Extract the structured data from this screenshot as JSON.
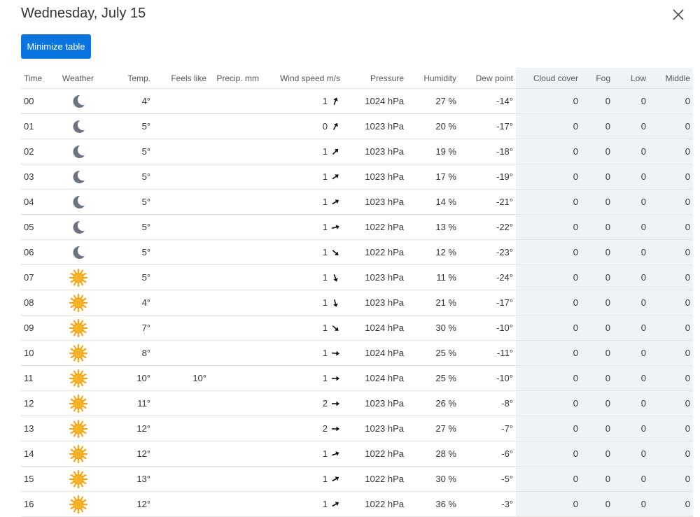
{
  "header": {
    "title": "Wednesday, July 15"
  },
  "toolbar": {
    "minimize_label": "Minimize table"
  },
  "columns": [
    "Time",
    "Weather",
    "Temp.",
    "Feels like",
    "Precip. mm",
    "Wind speed m/s",
    "Pressure",
    "Humidity",
    "Dew point",
    "Cloud cover",
    "Fog",
    "Low",
    "Middle"
  ],
  "rows": [
    {
      "time": "00",
      "weather": "moon-icon",
      "temp": "4°",
      "feels": "",
      "precip": "",
      "wind": "1",
      "wind_deg": 200,
      "pressure": "1024 hPa",
      "humidity": "27 %",
      "dew": "-14°",
      "cloud": "0",
      "fog": "0",
      "low": "0",
      "middle": "0"
    },
    {
      "time": "01",
      "weather": "moon-icon",
      "temp": "5°",
      "feels": "",
      "precip": "",
      "wind": "0",
      "wind_deg": 210,
      "pressure": "1023 hPa",
      "humidity": "20 %",
      "dew": "-17°",
      "cloud": "0",
      "fog": "0",
      "low": "0",
      "middle": "0"
    },
    {
      "time": "02",
      "weather": "moon-icon",
      "temp": "5°",
      "feels": "",
      "precip": "",
      "wind": "1",
      "wind_deg": 225,
      "pressure": "1023 hPa",
      "humidity": "19 %",
      "dew": "-18°",
      "cloud": "0",
      "fog": "0",
      "low": "0",
      "middle": "0"
    },
    {
      "time": "03",
      "weather": "moon-icon",
      "temp": "5°",
      "feels": "",
      "precip": "",
      "wind": "1",
      "wind_deg": 235,
      "pressure": "1023 hPa",
      "humidity": "17 %",
      "dew": "-19°",
      "cloud": "0",
      "fog": "0",
      "low": "0",
      "middle": "0"
    },
    {
      "time": "04",
      "weather": "moon-icon",
      "temp": "5°",
      "feels": "",
      "precip": "",
      "wind": "1",
      "wind_deg": 240,
      "pressure": "1023 hPa",
      "humidity": "14 %",
      "dew": "-21°",
      "cloud": "0",
      "fog": "0",
      "low": "0",
      "middle": "0"
    },
    {
      "time": "05",
      "weather": "moon-icon",
      "temp": "5°",
      "feels": "",
      "precip": "",
      "wind": "1",
      "wind_deg": 255,
      "pressure": "1022 hPa",
      "humidity": "13 %",
      "dew": "-22°",
      "cloud": "0",
      "fog": "0",
      "low": "0",
      "middle": "0"
    },
    {
      "time": "06",
      "weather": "moon-icon",
      "temp": "5°",
      "feels": "",
      "precip": "",
      "wind": "1",
      "wind_deg": 310,
      "pressure": "1022 hPa",
      "humidity": "12 %",
      "dew": "-23°",
      "cloud": "0",
      "fog": "0",
      "low": "0",
      "middle": "0"
    },
    {
      "time": "07",
      "weather": "sun-icon",
      "temp": "5°",
      "feels": "",
      "precip": "",
      "wind": "1",
      "wind_deg": 340,
      "pressure": "1023 hPa",
      "humidity": "11 %",
      "dew": "-24°",
      "cloud": "0",
      "fog": "0",
      "low": "0",
      "middle": "0"
    },
    {
      "time": "08",
      "weather": "sun-icon",
      "temp": "4°",
      "feels": "",
      "precip": "",
      "wind": "1",
      "wind_deg": 345,
      "pressure": "1023 hPa",
      "humidity": "21 %",
      "dew": "-17°",
      "cloud": "0",
      "fog": "0",
      "low": "0",
      "middle": "0"
    },
    {
      "time": "09",
      "weather": "sun-icon",
      "temp": "7°",
      "feels": "",
      "precip": "",
      "wind": "1",
      "wind_deg": 310,
      "pressure": "1024 hPa",
      "humidity": "30 %",
      "dew": "-10°",
      "cloud": "0",
      "fog": "0",
      "low": "0",
      "middle": "0"
    },
    {
      "time": "10",
      "weather": "sun-icon",
      "temp": "8°",
      "feels": "",
      "precip": "",
      "wind": "1",
      "wind_deg": 275,
      "pressure": "1024 hPa",
      "humidity": "25 %",
      "dew": "-11°",
      "cloud": "0",
      "fog": "0",
      "low": "0",
      "middle": "0"
    },
    {
      "time": "11",
      "weather": "sun-icon",
      "temp": "10°",
      "feels": "10°",
      "precip": "",
      "wind": "1",
      "wind_deg": 270,
      "pressure": "1024 hPa",
      "humidity": "25 %",
      "dew": "-10°",
      "cloud": "0",
      "fog": "0",
      "low": "0",
      "middle": "0"
    },
    {
      "time": "12",
      "weather": "sun-icon",
      "temp": "11°",
      "feels": "",
      "precip": "",
      "wind": "2",
      "wind_deg": 270,
      "pressure": "1023 hPa",
      "humidity": "26 %",
      "dew": "-8°",
      "cloud": "0",
      "fog": "0",
      "low": "0",
      "middle": "0"
    },
    {
      "time": "13",
      "weather": "sun-icon",
      "temp": "12°",
      "feels": "",
      "precip": "",
      "wind": "2",
      "wind_deg": 270,
      "pressure": "1023 hPa",
      "humidity": "27 %",
      "dew": "-7°",
      "cloud": "0",
      "fog": "0",
      "low": "0",
      "middle": "0"
    },
    {
      "time": "14",
      "weather": "sun-icon",
      "temp": "12°",
      "feels": "",
      "precip": "",
      "wind": "1",
      "wind_deg": 250,
      "pressure": "1022 hPa",
      "humidity": "28 %",
      "dew": "-6°",
      "cloud": "0",
      "fog": "0",
      "low": "0",
      "middle": "0"
    },
    {
      "time": "15",
      "weather": "sun-icon",
      "temp": "13°",
      "feels": "",
      "precip": "",
      "wind": "1",
      "wind_deg": 240,
      "pressure": "1022 hPa",
      "humidity": "30 %",
      "dew": "-5°",
      "cloud": "0",
      "fog": "0",
      "low": "0",
      "middle": "0"
    },
    {
      "time": "16",
      "weather": "sun-icon",
      "temp": "12°",
      "feels": "",
      "precip": "",
      "wind": "1",
      "wind_deg": 240,
      "pressure": "1022 hPa",
      "humidity": "36 %",
      "dew": "-3°",
      "cloud": "0",
      "fog": "0",
      "low": "0",
      "middle": "0"
    }
  ],
  "colors": {
    "accent": "#0b74de",
    "temp": "#c8102e",
    "dew": "#1a73d6",
    "shade": "#eef3f6"
  }
}
